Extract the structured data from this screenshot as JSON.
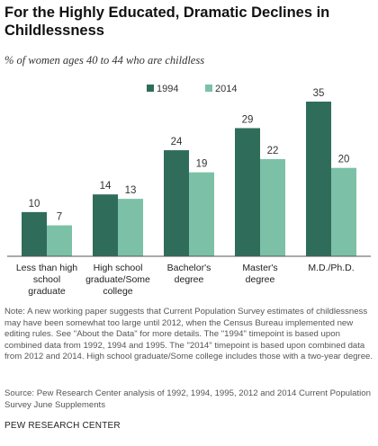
{
  "title": "For the Highly Educated, Dramatic Declines in Childlessness",
  "subtitle": "% of women ages 40 to 44 who are childless",
  "note": "Note: A new working paper suggests that Current Population Survey estimates of childlessness may have been somewhat too large until 2012, when the Census Bureau implemented new editing rules. See \"About the Data\" for more details. The \"1994\" timepoint is based upon combined data from 1992, 1994 and 1995. The \"2014\" timepoint is based upon combined data from 2012 and 2014. High school graduate/Some college includes those with a two-year degree.",
  "source": "Source: Pew Research Center analysis of 1992, 1994, 1995, 2012 and 2014 Current Population Survey June Supplements",
  "org": "PEW RESEARCH CENTER",
  "colors": {
    "series1": "#2f6d5a",
    "series2": "#7cc1a7"
  },
  "chart_data": {
    "type": "bar",
    "categories": [
      [
        "Less than high",
        "school",
        "graduate"
      ],
      [
        "High school",
        "graduate/Some",
        "college"
      ],
      [
        "Bachelor's",
        "degree"
      ],
      [
        "Master's",
        "degree"
      ],
      [
        "M.D./Ph.D."
      ]
    ],
    "series": [
      {
        "name": "1994",
        "values": [
          10,
          14,
          24,
          29,
          35
        ]
      },
      {
        "name": "2014",
        "values": [
          7,
          13,
          19,
          22,
          20
        ]
      }
    ],
    "ylim": [
      0,
      35
    ],
    "legend": "top-center",
    "grid": false
  }
}
